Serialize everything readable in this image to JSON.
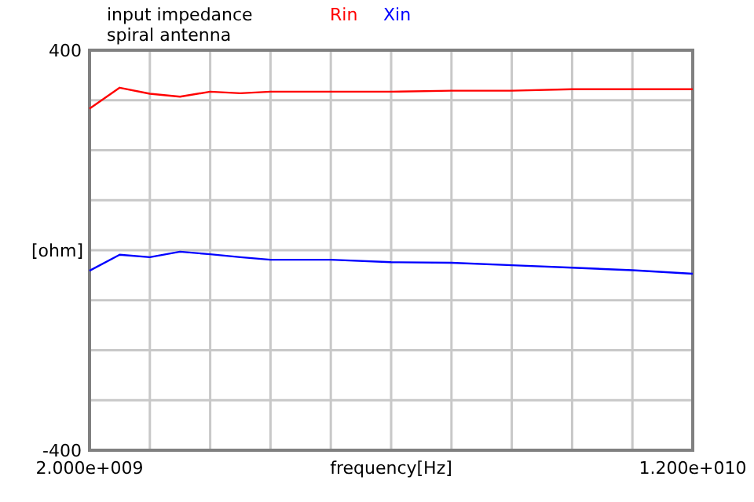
{
  "chart_data": {
    "type": "line",
    "title": "input impedance",
    "subtitle": "spiral antenna",
    "xlabel": "frequency[Hz]",
    "ylabel": "[ohm]",
    "x": [
      2000000000,
      2500000000,
      3000000000,
      3500000000,
      4000000000,
      4500000000,
      5000000000,
      6000000000,
      7000000000,
      8000000000,
      9000000000,
      10000000000,
      11000000000,
      12000000000
    ],
    "series": [
      {
        "name": "Rin",
        "color": "#ff0000",
        "values": [
          283,
          325,
          313,
          307,
          317,
          314,
          317,
          317,
          317,
          319,
          319,
          322,
          322,
          322
        ]
      },
      {
        "name": "Xin",
        "color": "#0000ff",
        "values": [
          -41,
          -9,
          -14,
          -3,
          -8,
          -14,
          -19,
          -19,
          -24,
          -25,
          -30,
          -35,
          -40,
          -47
        ]
      }
    ],
    "xlim": [
      2000000000,
      12000000000
    ],
    "xticks": [
      {
        "value": 2000000000,
        "label": "2.000e+009"
      },
      {
        "value": 3000000000,
        "label": null
      },
      {
        "value": 4000000000,
        "label": null
      },
      {
        "value": 5000000000,
        "label": null
      },
      {
        "value": 6000000000,
        "label": null
      },
      {
        "value": 7000000000,
        "label": null
      },
      {
        "value": 8000000000,
        "label": null
      },
      {
        "value": 9000000000,
        "label": null
      },
      {
        "value": 10000000000,
        "label": null
      },
      {
        "value": 11000000000,
        "label": null
      },
      {
        "value": 12000000000,
        "label": "1.200e+010"
      }
    ],
    "ylim": [
      -400,
      400
    ],
    "yticks": [
      -400,
      {
        "value": -300,
        "label": null
      },
      {
        "value": -200,
        "label": null
      },
      {
        "value": -100,
        "label": null
      },
      {
        "value": 0,
        "label": null
      },
      {
        "value": 100,
        "label": null
      },
      {
        "value": 200,
        "label": null
      },
      {
        "value": 300,
        "label": null
      },
      400
    ],
    "grid": true,
    "legend": "top",
    "marker": "none",
    "line_style": "solid"
  }
}
